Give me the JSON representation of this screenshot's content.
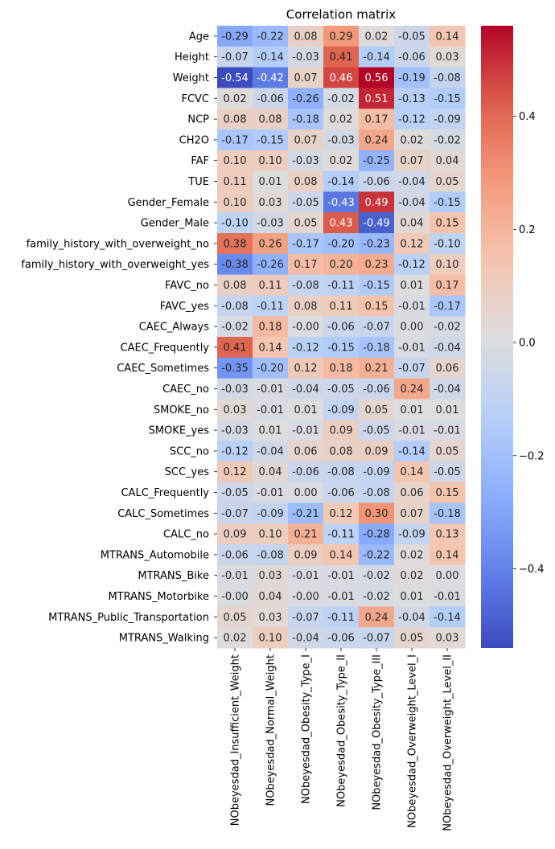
{
  "chart_data": {
    "type": "heatmap",
    "title": "Correlation matrix",
    "rows": [
      "Age",
      "Height",
      "Weight",
      "FCVC",
      "NCP",
      "CH2O",
      "FAF",
      "TUE",
      "Gender_Female",
      "Gender_Male",
      "family_history_with_overweight_no",
      "family_history_with_overweight_yes",
      "FAVC_no",
      "FAVC_yes",
      "CAEC_Always",
      "CAEC_Frequently",
      "CAEC_Sometimes",
      "CAEC_no",
      "SMOKE_no",
      "SMOKE_yes",
      "SCC_no",
      "SCC_yes",
      "CALC_Frequently",
      "CALC_Sometimes",
      "CALC_no",
      "MTRANS_Automobile",
      "MTRANS_Bike",
      "MTRANS_Motorbike",
      "MTRANS_Public_Transportation",
      "MTRANS_Walking"
    ],
    "columns": [
      "NObeyesdad_Insufficient_Weight",
      "NObeyesdad_Normal_Weight",
      "NObeyesdad_Obesity_Type_I",
      "NObeyesdad_Obesity_Type_II",
      "NObeyesdad_Obesity_Type_III",
      "NObeyesdad_Overweight_Level_I",
      "NObeyesdad_Overweight_Level_II"
    ],
    "values": [
      [
        -0.29,
        -0.22,
        0.08,
        0.29,
        0.02,
        -0.05,
        0.14
      ],
      [
        -0.07,
        -0.14,
        -0.03,
        0.41,
        -0.14,
        -0.06,
        0.03
      ],
      [
        -0.54,
        -0.42,
        0.07,
        0.46,
        0.56,
        -0.19,
        -0.08
      ],
      [
        0.02,
        -0.06,
        -0.26,
        -0.02,
        0.51,
        -0.13,
        -0.15
      ],
      [
        0.08,
        0.08,
        -0.18,
        0.02,
        0.17,
        -0.12,
        -0.09
      ],
      [
        -0.17,
        -0.15,
        0.07,
        -0.03,
        0.24,
        0.02,
        -0.02
      ],
      [
        0.1,
        0.1,
        -0.03,
        0.02,
        -0.25,
        0.07,
        0.04
      ],
      [
        0.11,
        0.01,
        0.08,
        -0.14,
        -0.06,
        -0.04,
        0.05
      ],
      [
        0.1,
        0.03,
        -0.05,
        -0.43,
        0.49,
        -0.04,
        -0.15
      ],
      [
        -0.1,
        -0.03,
        0.05,
        0.43,
        -0.49,
        0.04,
        0.15
      ],
      [
        0.38,
        0.26,
        -0.17,
        -0.2,
        -0.23,
        0.12,
        -0.1
      ],
      [
        -0.38,
        -0.26,
        0.17,
        0.2,
        0.23,
        -0.12,
        0.1
      ],
      [
        0.08,
        0.11,
        -0.08,
        -0.11,
        -0.15,
        0.01,
        0.17
      ],
      [
        -0.08,
        -0.11,
        0.08,
        0.11,
        0.15,
        -0.01,
        -0.17
      ],
      [
        -0.02,
        0.18,
        -0.0,
        -0.06,
        -0.07,
        0.0,
        -0.02
      ],
      [
        0.41,
        0.14,
        -0.12,
        -0.15,
        -0.18,
        -0.01,
        -0.04
      ],
      [
        -0.35,
        -0.2,
        0.12,
        0.18,
        0.21,
        -0.07,
        0.06
      ],
      [
        -0.03,
        -0.01,
        -0.04,
        -0.05,
        -0.06,
        0.24,
        -0.04
      ],
      [
        0.03,
        -0.01,
        0.01,
        -0.09,
        0.05,
        0.01,
        0.01
      ],
      [
        -0.03,
        0.01,
        -0.01,
        0.09,
        -0.05,
        -0.01,
        -0.01
      ],
      [
        -0.12,
        -0.04,
        0.06,
        0.08,
        0.09,
        -0.14,
        0.05
      ],
      [
        0.12,
        0.04,
        -0.06,
        -0.08,
        -0.09,
        0.14,
        -0.05
      ],
      [
        -0.05,
        -0.01,
        0.0,
        -0.06,
        -0.08,
        0.06,
        0.15
      ],
      [
        -0.07,
        -0.09,
        -0.21,
        0.12,
        0.3,
        0.07,
        -0.18
      ],
      [
        0.09,
        0.1,
        0.21,
        -0.11,
        -0.28,
        -0.09,
        0.13
      ],
      [
        -0.06,
        -0.08,
        0.09,
        0.14,
        -0.22,
        0.02,
        0.14
      ],
      [
        -0.01,
        0.03,
        -0.01,
        -0.01,
        -0.02,
        0.02,
        0.0
      ],
      [
        -0.0,
        0.04,
        -0.0,
        -0.01,
        -0.02,
        0.01,
        -0.01
      ],
      [
        0.05,
        0.03,
        -0.07,
        -0.11,
        0.24,
        -0.04,
        -0.14
      ],
      [
        0.02,
        0.1,
        -0.04,
        -0.06,
        -0.07,
        0.05,
        0.03
      ]
    ],
    "value_format": "2 decimals",
    "colormap": "coolwarm",
    "colorbar": {
      "range": [
        -0.54,
        0.56
      ],
      "ticks": [
        0.4,
        0.2,
        0.0,
        -0.2,
        -0.4
      ],
      "tick_labels": [
        "0.4",
        "0.2",
        "0.0",
        "−0.2",
        "−0.4"
      ],
      "placement": "right"
    }
  }
}
